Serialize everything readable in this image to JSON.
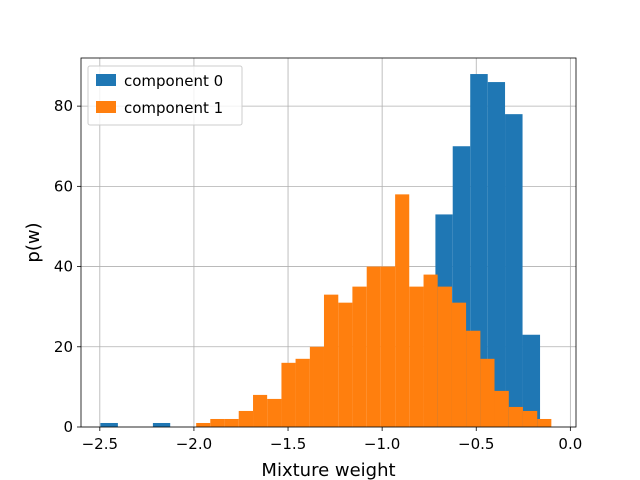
{
  "chart_data": {
    "type": "bar",
    "title": "",
    "xlabel": "Mixture weight",
    "ylabel": "p(w)",
    "xlim": [
      -2.6,
      0.03
    ],
    "ylim": [
      0,
      92
    ],
    "grid": true,
    "legend_position": "top-left",
    "x_ticks": [
      -2.5,
      -2.0,
      -1.5,
      -1.0,
      -0.5,
      0.0
    ],
    "x_tick_labels": [
      "−2.5",
      "−2.0",
      "−1.5",
      "−1.0",
      "−0.5",
      "0.0"
    ],
    "y_ticks": [
      0,
      20,
      40,
      60,
      80
    ],
    "y_tick_labels": [
      "0",
      "20",
      "40",
      "60",
      "80"
    ],
    "series": [
      {
        "name": "component 0",
        "color": "#1f77b4",
        "bins": [
          [
            -2.497,
            -2.404,
            1
          ],
          [
            -2.218,
            -2.126,
            1
          ],
          [
            -0.717,
            -0.625,
            53
          ],
          [
            -0.625,
            -0.532,
            70
          ],
          [
            -0.532,
            -0.439,
            88
          ],
          [
            -0.439,
            -0.347,
            86
          ],
          [
            -0.347,
            -0.254,
            78
          ],
          [
            -0.254,
            -0.161,
            23
          ]
        ]
      },
      {
        "name": "component 1",
        "color": "#ff7f0e",
        "bins": [
          [
            -1.988,
            -1.913,
            1
          ],
          [
            -1.913,
            -1.837,
            2
          ],
          [
            -1.837,
            -1.762,
            2
          ],
          [
            -1.762,
            -1.686,
            4
          ],
          [
            -1.686,
            -1.611,
            8
          ],
          [
            -1.611,
            -1.535,
            7
          ],
          [
            -1.535,
            -1.46,
            16
          ],
          [
            -1.46,
            -1.384,
            17
          ],
          [
            -1.384,
            -1.309,
            20
          ],
          [
            -1.309,
            -1.233,
            33
          ],
          [
            -1.233,
            -1.158,
            31
          ],
          [
            -1.158,
            -1.082,
            35
          ],
          [
            -1.082,
            -1.007,
            40
          ],
          [
            -1.007,
            -0.931,
            40
          ],
          [
            -0.931,
            -0.856,
            58
          ],
          [
            -0.856,
            -0.78,
            35
          ],
          [
            -0.78,
            -0.705,
            38
          ],
          [
            -0.705,
            -0.629,
            35
          ],
          [
            -0.629,
            -0.554,
            31
          ],
          [
            -0.554,
            -0.478,
            24
          ],
          [
            -0.478,
            -0.403,
            17
          ],
          [
            -0.403,
            -0.327,
            9
          ],
          [
            -0.327,
            -0.252,
            5
          ],
          [
            -0.252,
            -0.176,
            4
          ],
          [
            -0.176,
            -0.101,
            2
          ]
        ]
      }
    ]
  }
}
